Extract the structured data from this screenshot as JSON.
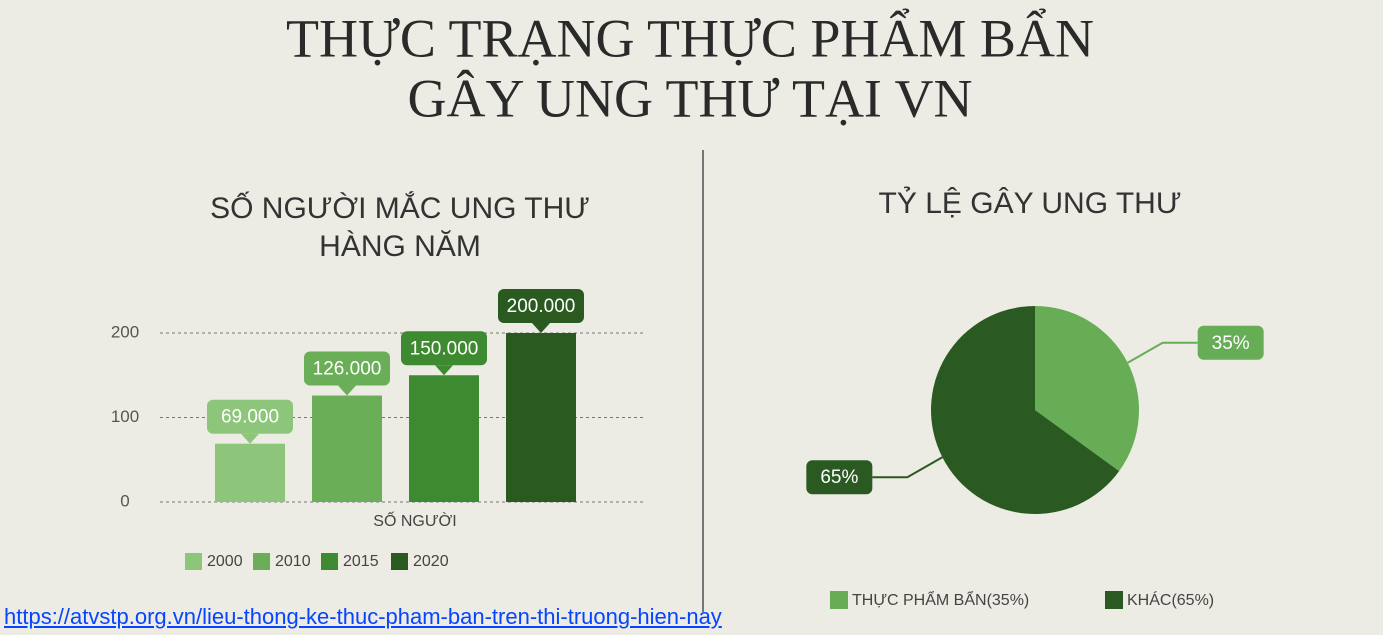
{
  "title": [
    "THỰC TRẠNG THỰC PHẨM  BẨN",
    "GÂY UNG THƯ TẠI VN"
  ],
  "link": "https://atvstp.org.vn/lieu-thong-ke-thuc-pham-ban-tren-thi-truong-hien-nay",
  "chart_data": [
    {
      "type": "bar",
      "title": [
        "SỐ NGƯỜI MẮC UNG THƯ",
        "HÀNG NĂM"
      ],
      "x_label": "SỐ NGƯỜI",
      "series": [
        {
          "name": "2000",
          "color": "#8dc67b",
          "values": [
            69
          ],
          "value_labels": [
            "69.000"
          ]
        },
        {
          "name": "2010",
          "color": "#6aae58",
          "values": [
            126
          ],
          "value_labels": [
            "126.000"
          ]
        },
        {
          "name": "2015",
          "color": "#3e8a30",
          "values": [
            150
          ],
          "value_labels": [
            "150.000"
          ]
        },
        {
          "name": "2020",
          "color": "#2a5a20",
          "values": [
            200
          ],
          "value_labels": [
            "200.000"
          ]
        }
      ],
      "ylim": [
        0,
        200
      ],
      "yticks": [
        0,
        100,
        200
      ],
      "grid": true
    },
    {
      "type": "pie",
      "title": "TỶ LỆ GÂY UNG THƯ",
      "categories": [
        "THỰC PHẨM BẨN(35%)",
        "KHÁC(65%)"
      ],
      "values": [
        35,
        65
      ],
      "value_labels": [
        "35%",
        "65%"
      ],
      "colors": [
        "#67ad55",
        "#2a5a22"
      ]
    }
  ]
}
